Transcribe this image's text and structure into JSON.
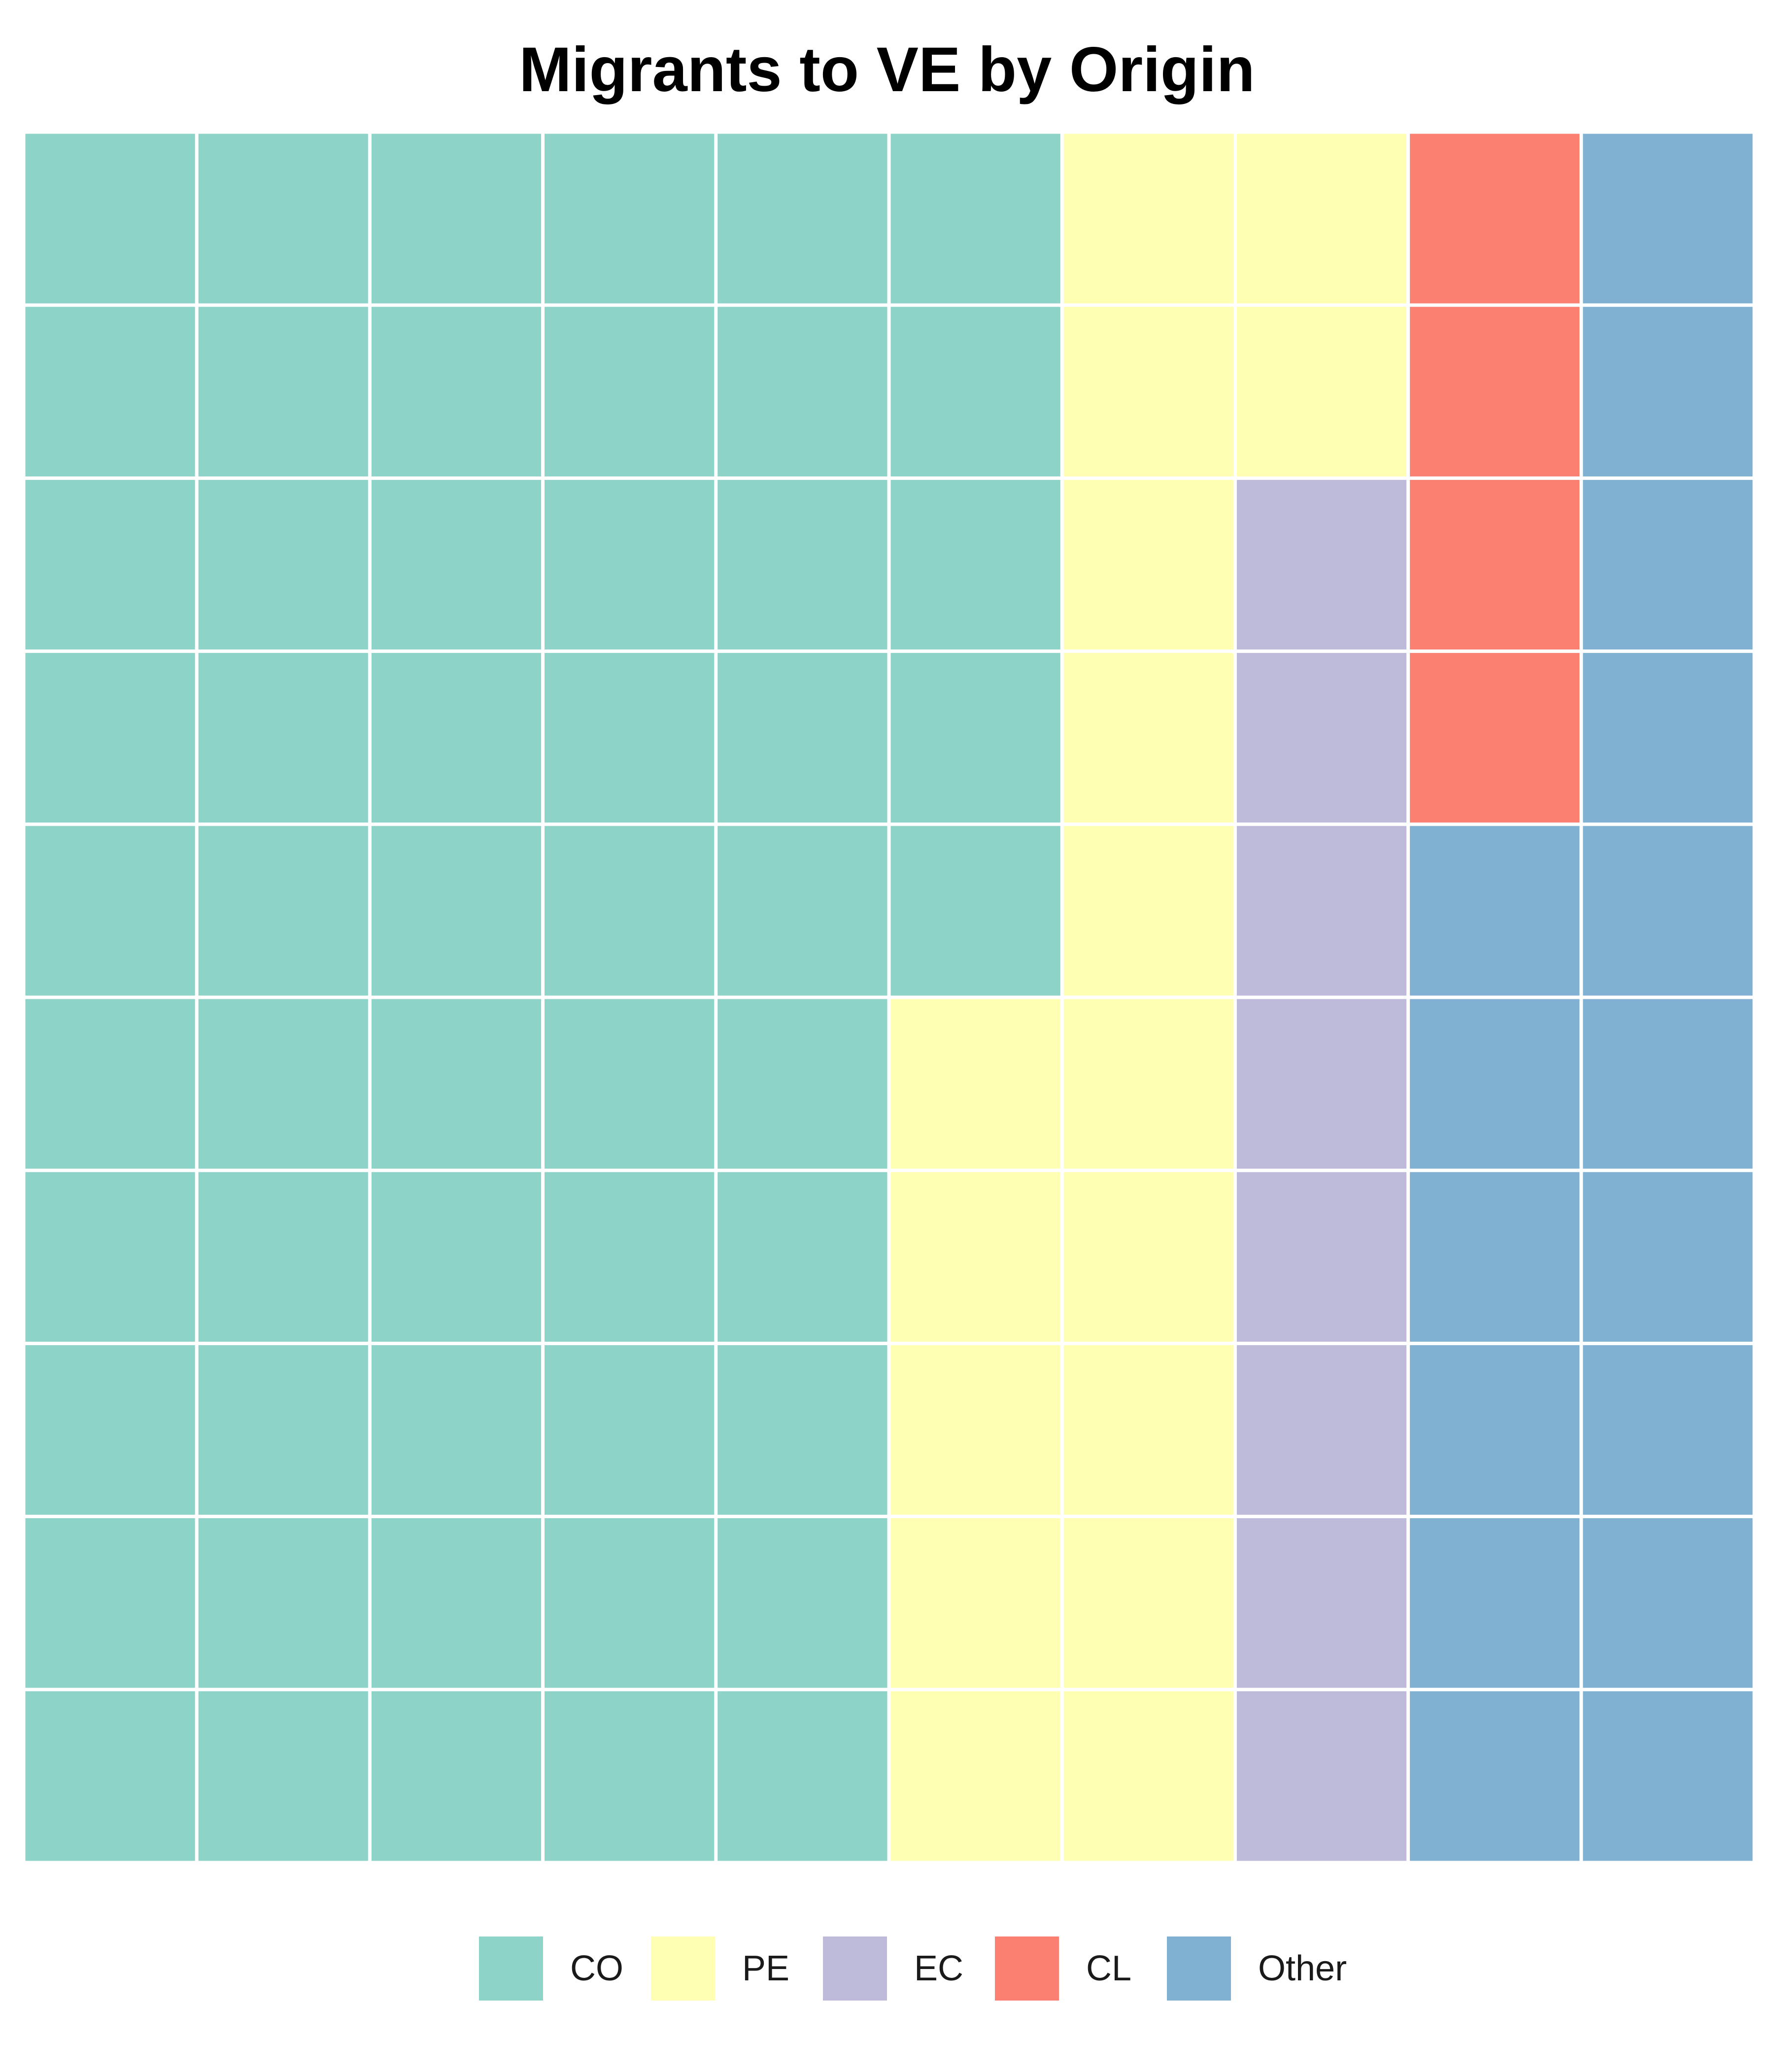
{
  "chart_data": {
    "type": "waffle",
    "title": "Migrants to VE by Origin",
    "grid": {
      "rows": 10,
      "cols": 10
    },
    "fill_order": "column-major, top to bottom",
    "legend_position": "bottom",
    "categories": [
      "CO",
      "PE",
      "EC",
      "CL",
      "Other"
    ],
    "values": [
      55,
      17,
      8,
      4,
      16
    ],
    "colors": [
      "#8DD3C7",
      "#FFFFB3",
      "#BEBADA",
      "#FB8072",
      "#80B1D3"
    ]
  }
}
